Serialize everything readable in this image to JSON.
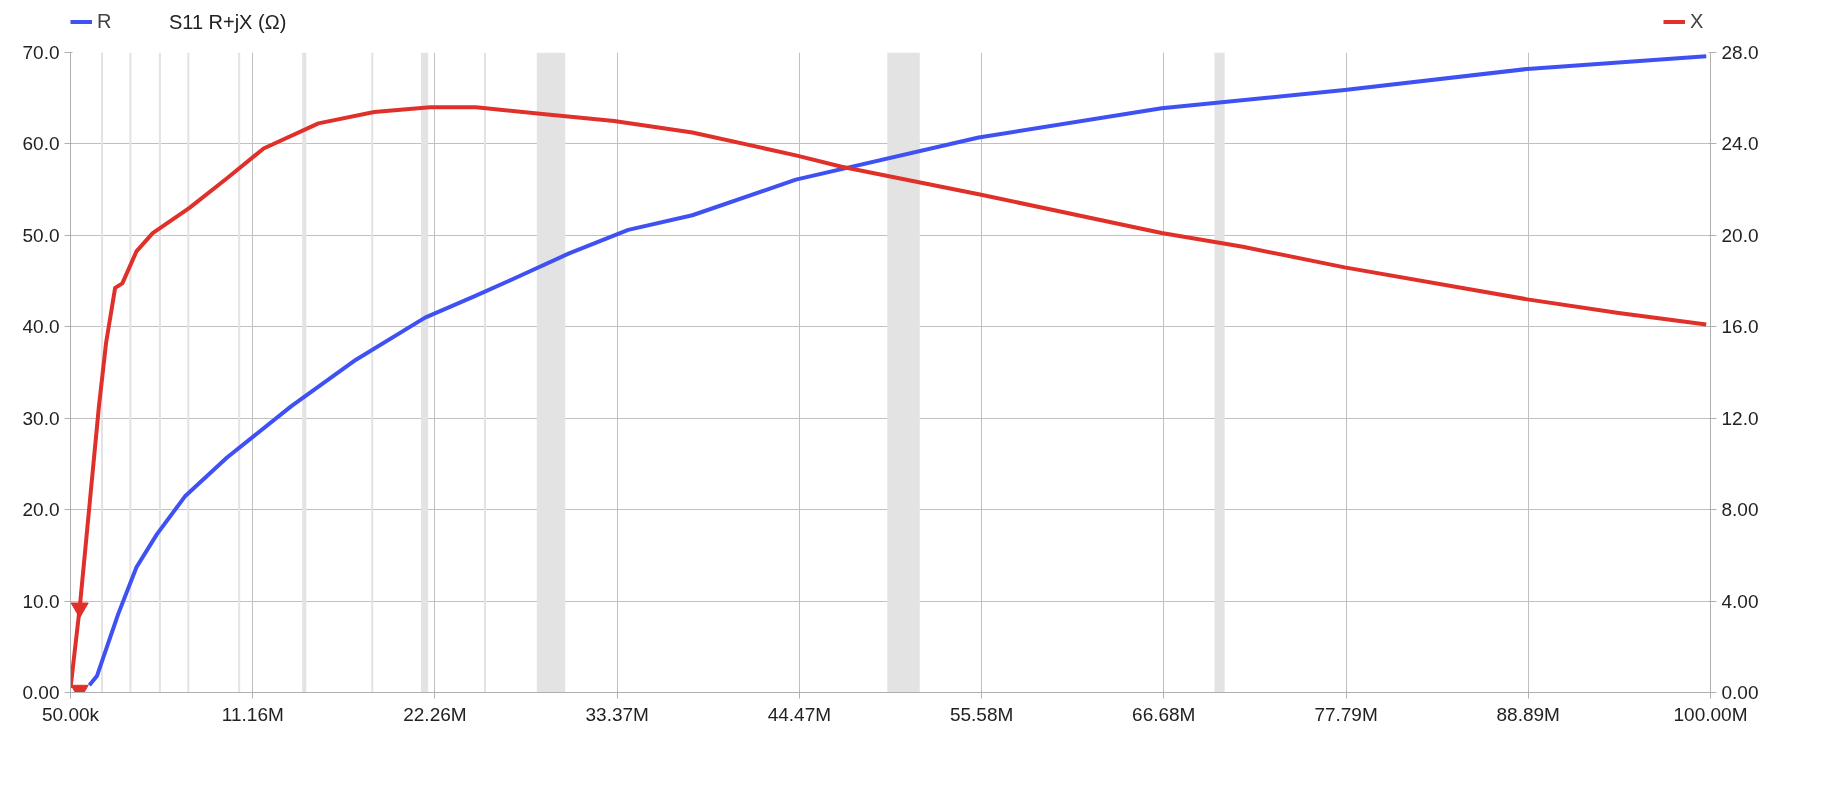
{
  "chart_data": {
    "type": "line",
    "title": "S11 R+jX (Ω)",
    "xlim": [
      50000,
      100000000
    ],
    "xticks": [
      {
        "value": 50000,
        "label": "50.00k"
      },
      {
        "value": 11160000,
        "label": "11.16M"
      },
      {
        "value": 22260000,
        "label": "22.26M"
      },
      {
        "value": 33370000,
        "label": "33.37M"
      },
      {
        "value": 44470000,
        "label": "44.47M"
      },
      {
        "value": 55580000,
        "label": "55.58M"
      },
      {
        "value": 66680000,
        "label": "66.68M"
      },
      {
        "value": 77790000,
        "label": "77.79M"
      },
      {
        "value": 88890000,
        "label": "88.89M"
      },
      {
        "value": 100000000,
        "label": "100.00M"
      }
    ],
    "ylim": [
      0,
      70
    ],
    "yticks": [
      {
        "value": 0,
        "label": "0.00"
      },
      {
        "value": 10,
        "label": "10.0"
      },
      {
        "value": 20,
        "label": "20.0"
      },
      {
        "value": 30,
        "label": "30.0"
      },
      {
        "value": 40,
        "label": "40.0"
      },
      {
        "value": 50,
        "label": "50.0"
      },
      {
        "value": 60,
        "label": "60.0"
      },
      {
        "value": 70,
        "label": "70.0"
      }
    ],
    "y2lim": [
      0,
      28
    ],
    "y2ticks": [
      {
        "value": 0,
        "label": "0.00"
      },
      {
        "value": 4,
        "label": "4.00"
      },
      {
        "value": 8,
        "label": "8.00"
      },
      {
        "value": 12,
        "label": "12.0"
      },
      {
        "value": 16,
        "label": "16.0"
      },
      {
        "value": 20,
        "label": "20.0"
      },
      {
        "value": 24,
        "label": "24.0"
      },
      {
        "value": 28,
        "label": "28.0"
      }
    ],
    "grid": true,
    "legend": "top",
    "line_style": "solid",
    "marker": "none",
    "bands": [
      {
        "axis": "x",
        "from": 14170000,
        "to": 14420000,
        "color": "#e3e3e3"
      },
      {
        "axis": "x",
        "from": 21410000,
        "to": 21850000,
        "color": "#e3e3e3"
      },
      {
        "axis": "x",
        "from": 28470000,
        "to": 30200000,
        "color": "#e3e3e3"
      },
      {
        "axis": "x",
        "from": 49830000,
        "to": 51810000,
        "color": "#e3e3e3"
      },
      {
        "axis": "x",
        "from": 69770000,
        "to": 70390000,
        "color": "#e3e3e3"
      }
    ],
    "ref_lines": [
      {
        "axis": "x",
        "value": 1970000,
        "color": "#e3e3e3"
      },
      {
        "axis": "x",
        "value": 3700000,
        "color": "#e3e3e3"
      },
      {
        "axis": "x",
        "value": 5500000,
        "color": "#e3e3e3"
      },
      {
        "axis": "x",
        "value": 7230000,
        "color": "#e3e3e3"
      },
      {
        "axis": "x",
        "value": 10330000,
        "color": "#e3e3e3"
      },
      {
        "axis": "x",
        "value": 18440000,
        "color": "#e3e3e3"
      },
      {
        "axis": "x",
        "value": 25310000,
        "color": "#e3e3e3"
      }
    ],
    "series": [
      {
        "name": "R",
        "color": "#3f51f2",
        "x": [
          1200000,
          1660000,
          2960000,
          4070000,
          5310000,
          7050000,
          9590000,
          13490000,
          17450000,
          21660000,
          24760000,
          26990000,
          30400000,
          34040000,
          37950000,
          44260000,
          55400000,
          66550000,
          77700000,
          88840000,
          99740000
        ],
        "values": [
          0.8,
          1.8,
          8.6,
          13.7,
          17.3,
          21.5,
          25.7,
          31.3,
          36.4,
          41.0,
          43.4,
          45.2,
          48.0,
          50.6,
          52.2,
          56.1,
          60.7,
          63.9,
          65.9,
          68.2,
          69.6
        ]
      },
      {
        "name": "X",
        "color": "#e0302a",
        "axis": "y2",
        "x": [
          50000,
          610000,
          1780000,
          2220000,
          2770000,
          3210000,
          4070000,
          5060000,
          7300000,
          9590000,
          11820000,
          15160000,
          18560000,
          21970000,
          24760000,
          28970000,
          33180000,
          37950000,
          44260000,
          47050000,
          55400000,
          66550000,
          71500000,
          77700000,
          88840000,
          94400000,
          99740000
        ],
        "values": [
          0.2,
          3.7,
          12.5,
          15.3,
          17.7,
          17.9,
          19.3,
          20.1,
          21.2,
          22.5,
          23.8,
          24.9,
          25.4,
          25.6,
          25.6,
          25.3,
          25.0,
          24.5,
          23.5,
          23.0,
          21.8,
          20.1,
          19.5,
          18.6,
          17.2,
          16.6,
          16.1
        ]
      },
      {
        "type": "scatter",
        "marker": "triangle",
        "color": "#e0302a",
        "axis": "y2",
        "x": [
          610000,
          610000
        ],
        "values": [
          3.7,
          0.1
        ]
      }
    ]
  }
}
